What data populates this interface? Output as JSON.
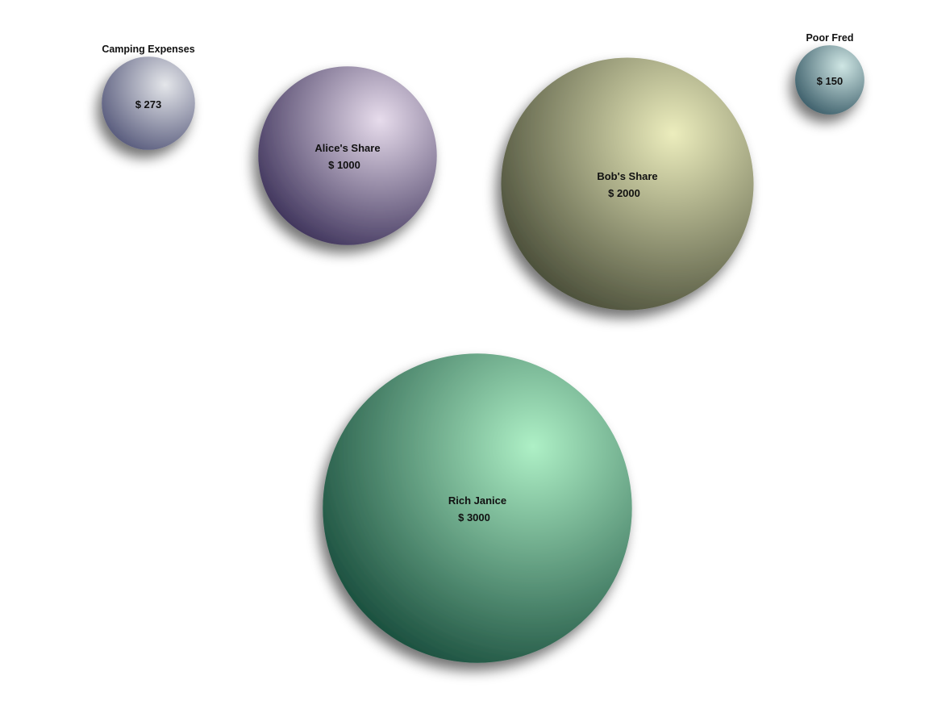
{
  "chart_data": {
    "type": "bubble",
    "currency_symbol": "$",
    "bubbles": [
      {
        "id": "camping",
        "label": "Camping Expenses",
        "label_position": "above",
        "value": 273,
        "color": "#55587a",
        "highlight": "#e4e6ea"
      },
      {
        "id": "alice",
        "label": "Alice's Share",
        "label_position": "inside",
        "value": 1000,
        "color": "#3b3058",
        "highlight": "#e7dcec"
      },
      {
        "id": "bob",
        "label": "Bob's Share",
        "label_position": "inside",
        "value": 2000,
        "color": "#464a36",
        "highlight": "#ecedbd"
      },
      {
        "id": "fred",
        "label": "Poor Fred",
        "label_position": "above",
        "value": 150,
        "color": "#3a5c68",
        "highlight": "#cfe6e4"
      },
      {
        "id": "janice",
        "label": "Rich Janice",
        "label_position": "inside",
        "value": 3000,
        "color": "#164a3a",
        "highlight": "#aef0c6"
      }
    ]
  }
}
